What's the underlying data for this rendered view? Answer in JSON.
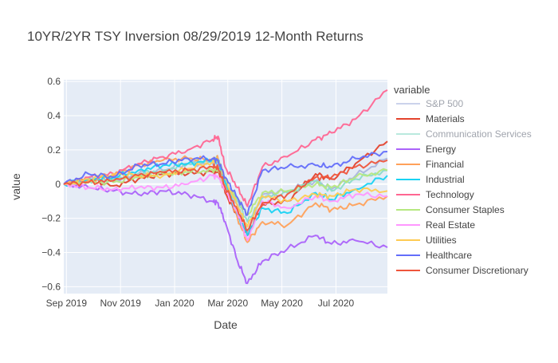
{
  "chart_data": {
    "type": "line",
    "title": "10YR/2YR TSY Inversion 08/29/2019 12-Month Returns",
    "xlabel": "Date",
    "ylabel": "value",
    "xlim": [
      "2019-08-29",
      "2020-08-28"
    ],
    "ylim": [
      -0.64,
      0.61
    ],
    "yticks": [
      -0.6,
      -0.4,
      -0.2,
      0,
      0.2,
      0.4,
      0.6
    ],
    "ytick_labels": [
      "−0.6",
      "−0.4",
      "−0.2",
      "0",
      "0.2",
      "0.4",
      "0.6"
    ],
    "xticks": [
      {
        "date": "2019-09-01",
        "label": "Sep 2019"
      },
      {
        "date": "2019-11-01",
        "label": "Nov 2019"
      },
      {
        "date": "2020-01-01",
        "label": "Jan 2020"
      },
      {
        "date": "2020-03-01",
        "label": "Mar 2020"
      },
      {
        "date": "2020-05-01",
        "label": "May 2020"
      },
      {
        "date": "2020-07-01",
        "label": "Jul 2020"
      }
    ],
    "grid": true,
    "legend_title": "variable",
    "legend_position": "right",
    "x": [
      "2019-08-29",
      "2019-09-26",
      "2019-10-24",
      "2019-11-21",
      "2019-12-19",
      "2020-01-16",
      "2020-02-13",
      "2020-02-19",
      "2020-02-27",
      "2020-03-12",
      "2020-03-23",
      "2020-04-09",
      "2020-05-07",
      "2020-06-08",
      "2020-06-26",
      "2020-07-23",
      "2020-08-28"
    ],
    "series": [
      {
        "name": "S&P 500",
        "color": "#aab6de",
        "legend_inactive": true,
        "values": [
          0,
          0.03,
          0.02,
          0.06,
          0.08,
          0.12,
          0.12,
          0.13,
          0.0,
          -0.12,
          -0.28,
          -0.06,
          -0.04,
          0.02,
          -0.03,
          0.05,
          0.15
        ]
      },
      {
        "name": "Materials",
        "color": "#e4432d",
        "values": [
          0,
          0.03,
          -0.01,
          0.03,
          0.06,
          0.06,
          0.07,
          0.07,
          -0.05,
          -0.19,
          -0.3,
          -0.12,
          -0.1,
          0.06,
          0.03,
          0.12,
          0.25
        ]
      },
      {
        "name": "Communication Services",
        "color": "#8cdcc9",
        "legend_inactive": true,
        "values": [
          0,
          0.02,
          0.03,
          0.06,
          0.08,
          0.12,
          0.14,
          0.15,
          0.02,
          -0.1,
          -0.22,
          -0.08,
          -0.05,
          0.02,
          -0.04,
          0.03,
          0.08
        ]
      },
      {
        "name": "Energy",
        "color": "#ab63fa",
        "values": [
          0,
          -0.02,
          -0.04,
          -0.06,
          -0.04,
          -0.06,
          -0.1,
          -0.11,
          -0.22,
          -0.45,
          -0.58,
          -0.45,
          -0.38,
          -0.3,
          -0.35,
          -0.33,
          -0.37
        ]
      },
      {
        "name": "Financial",
        "color": "#ffa15a",
        "values": [
          0,
          0.02,
          0.05,
          0.11,
          0.14,
          0.15,
          0.14,
          0.15,
          0.01,
          -0.2,
          -0.34,
          -0.22,
          -0.24,
          -0.11,
          -0.15,
          -0.12,
          -0.07
        ]
      },
      {
        "name": "Industrial",
        "color": "#19d3f3",
        "values": [
          0,
          0.03,
          0.04,
          0.08,
          0.11,
          0.12,
          0.14,
          0.14,
          0.01,
          -0.18,
          -0.3,
          -0.14,
          -0.17,
          -0.05,
          -0.09,
          -0.03,
          0.05
        ]
      },
      {
        "name": "Technology",
        "color": "#ff6692",
        "values": [
          0,
          0.04,
          0.06,
          0.12,
          0.16,
          0.2,
          0.26,
          0.28,
          0.1,
          -0.02,
          -0.13,
          0.1,
          0.16,
          0.26,
          0.3,
          0.38,
          0.55
        ]
      },
      {
        "name": "Consumer Staples",
        "color": "#b6e880",
        "values": [
          0,
          0.01,
          0.01,
          0.04,
          0.06,
          0.07,
          0.08,
          0.09,
          -0.02,
          -0.08,
          -0.18,
          -0.05,
          -0.04,
          0.0,
          -0.02,
          0.04,
          0.08
        ]
      },
      {
        "name": "Real Estate",
        "color": "#ff97ff",
        "values": [
          0,
          -0.02,
          -0.03,
          -0.02,
          -0.02,
          0.0,
          0.05,
          0.04,
          -0.03,
          -0.17,
          -0.33,
          -0.1,
          -0.14,
          -0.07,
          -0.1,
          -0.06,
          -0.07
        ]
      },
      {
        "name": "Utilities",
        "color": "#fecb52",
        "values": [
          0,
          0.03,
          0.06,
          0.05,
          0.05,
          0.09,
          0.13,
          0.14,
          0.03,
          -0.13,
          -0.25,
          -0.07,
          -0.1,
          -0.06,
          -0.07,
          -0.03,
          -0.04
        ]
      },
      {
        "name": "Healthcare",
        "color": "#636efa",
        "values": [
          0,
          0.06,
          0.04,
          0.11,
          0.12,
          0.15,
          0.15,
          0.14,
          0.04,
          -0.08,
          -0.18,
          0.08,
          0.1,
          0.11,
          0.1,
          0.15,
          0.19
        ]
      },
      {
        "name": "Consumer Discretionary",
        "color": "#ef553b",
        "values": [
          0,
          0.01,
          0.02,
          0.05,
          0.07,
          0.08,
          0.1,
          0.1,
          -0.02,
          -0.15,
          -0.27,
          -0.11,
          -0.06,
          0.04,
          0.04,
          0.1,
          0.14
        ]
      }
    ]
  }
}
